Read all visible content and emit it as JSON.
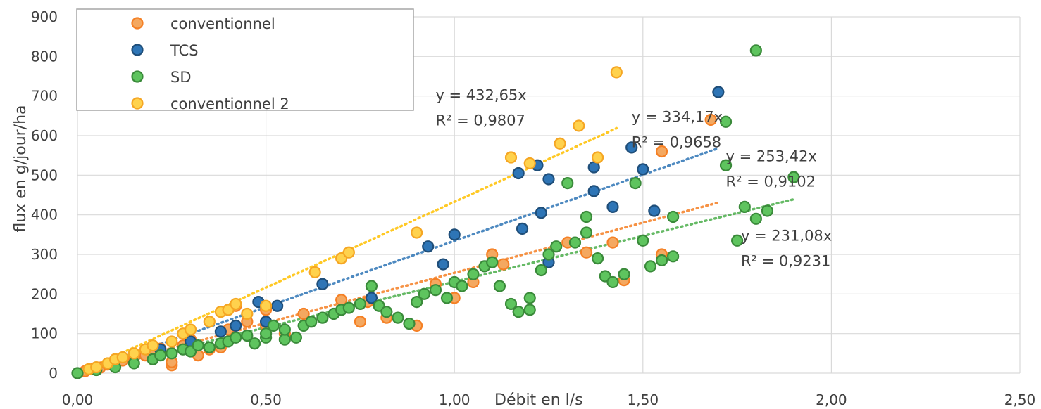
{
  "chart_data": {
    "type": "scatter",
    "xlabel": "Débit en l/s",
    "ylabel": "flux en g/jour/ha",
    "xlim": [
      0,
      2.5
    ],
    "ylim": [
      0,
      900
    ],
    "x_ticks": [
      "0,00",
      "0,50",
      "1,00",
      "1,50",
      "2,00",
      "2,50"
    ],
    "y_ticks": [
      "0",
      "100",
      "200",
      "300",
      "400",
      "500",
      "600",
      "700",
      "800",
      "900"
    ],
    "grid": true,
    "legend_position": "top-left",
    "series": [
      {
        "name": "conventionnel",
        "color": "#f58025",
        "fill": "#f4a860",
        "trend": {
          "slope": 253.42,
          "x_end": 1.7,
          "color": "#f58025"
        },
        "points": [
          [
            0.02,
            5
          ],
          [
            0.04,
            10
          ],
          [
            0.06,
            14
          ],
          [
            0.08,
            22
          ],
          [
            0.1,
            28
          ],
          [
            0.12,
            32
          ],
          [
            0.15,
            40
          ],
          [
            0.18,
            45
          ],
          [
            0.2,
            55
          ],
          [
            0.22,
            62
          ],
          [
            0.25,
            20
          ],
          [
            0.25,
            28
          ],
          [
            0.28,
            70
          ],
          [
            0.3,
            85
          ],
          [
            0.32,
            45
          ],
          [
            0.35,
            60
          ],
          [
            0.38,
            65
          ],
          [
            0.4,
            110
          ],
          [
            0.42,
            170
          ],
          [
            0.45,
            130
          ],
          [
            0.5,
            160
          ],
          [
            0.5,
            120
          ],
          [
            0.55,
            100
          ],
          [
            0.6,
            150
          ],
          [
            0.7,
            185
          ],
          [
            0.75,
            130
          ],
          [
            0.77,
            180
          ],
          [
            0.82,
            140
          ],
          [
            0.9,
            120
          ],
          [
            0.95,
            225
          ],
          [
            1.0,
            190
          ],
          [
            1.05,
            230
          ],
          [
            1.1,
            300
          ],
          [
            1.13,
            275
          ],
          [
            1.3,
            330
          ],
          [
            1.35,
            305
          ],
          [
            1.42,
            330
          ],
          [
            1.45,
            235
          ],
          [
            1.55,
            300
          ],
          [
            1.55,
            560
          ],
          [
            1.68,
            640
          ]
        ]
      },
      {
        "name": "TCS",
        "color": "#1f4e79",
        "fill": "#2e75b6",
        "trend": {
          "slope": 334.17,
          "x_end": 1.7,
          "color": "#2e75b6"
        },
        "points": [
          [
            0.22,
            60
          ],
          [
            0.3,
            80
          ],
          [
            0.38,
            105
          ],
          [
            0.42,
            120
          ],
          [
            0.48,
            180
          ],
          [
            0.5,
            130
          ],
          [
            0.53,
            170
          ],
          [
            0.65,
            225
          ],
          [
            0.78,
            190
          ],
          [
            0.93,
            320
          ],
          [
            0.97,
            275
          ],
          [
            1.0,
            350
          ],
          [
            1.17,
            505
          ],
          [
            1.18,
            365
          ],
          [
            1.22,
            525
          ],
          [
            1.23,
            405
          ],
          [
            1.25,
            280
          ],
          [
            1.25,
            490
          ],
          [
            1.37,
            520
          ],
          [
            1.37,
            460
          ],
          [
            1.42,
            420
          ],
          [
            1.47,
            570
          ],
          [
            1.5,
            515
          ],
          [
            1.53,
            410
          ],
          [
            1.7,
            710
          ]
        ]
      },
      {
        "name": "SD",
        "color": "#3a8a3a",
        "fill": "#5ec45e",
        "trend": {
          "slope": 231.08,
          "x_end": 1.9,
          "color": "#4cae4c"
        },
        "points": [
          [
            0,
            0
          ],
          [
            0.05,
            8
          ],
          [
            0.1,
            15
          ],
          [
            0.15,
            25
          ],
          [
            0.2,
            35
          ],
          [
            0.22,
            45
          ],
          [
            0.25,
            50
          ],
          [
            0.28,
            60
          ],
          [
            0.3,
            55
          ],
          [
            0.32,
            70
          ],
          [
            0.35,
            65
          ],
          [
            0.38,
            75
          ],
          [
            0.4,
            80
          ],
          [
            0.42,
            90
          ],
          [
            0.45,
            95
          ],
          [
            0.47,
            75
          ],
          [
            0.5,
            90
          ],
          [
            0.5,
            100
          ],
          [
            0.52,
            120
          ],
          [
            0.55,
            85
          ],
          [
            0.55,
            110
          ],
          [
            0.58,
            90
          ],
          [
            0.6,
            120
          ],
          [
            0.62,
            130
          ],
          [
            0.65,
            140
          ],
          [
            0.68,
            150
          ],
          [
            0.7,
            160
          ],
          [
            0.72,
            165
          ],
          [
            0.75,
            175
          ],
          [
            0.78,
            220
          ],
          [
            0.8,
            170
          ],
          [
            0.82,
            155
          ],
          [
            0.85,
            140
          ],
          [
            0.88,
            125
          ],
          [
            0.9,
            180
          ],
          [
            0.92,
            200
          ],
          [
            0.95,
            210
          ],
          [
            0.98,
            190
          ],
          [
            1.0,
            230
          ],
          [
            1.02,
            220
          ],
          [
            1.05,
            250
          ],
          [
            1.08,
            270
          ],
          [
            1.1,
            280
          ],
          [
            1.12,
            220
          ],
          [
            1.15,
            175
          ],
          [
            1.17,
            155
          ],
          [
            1.2,
            160
          ],
          [
            1.2,
            190
          ],
          [
            1.23,
            260
          ],
          [
            1.25,
            300
          ],
          [
            1.27,
            320
          ],
          [
            1.3,
            480
          ],
          [
            1.32,
            330
          ],
          [
            1.35,
            395
          ],
          [
            1.35,
            355
          ],
          [
            1.38,
            290
          ],
          [
            1.4,
            245
          ],
          [
            1.42,
            230
          ],
          [
            1.45,
            250
          ],
          [
            1.48,
            480
          ],
          [
            1.5,
            335
          ],
          [
            1.52,
            270
          ],
          [
            1.55,
            285
          ],
          [
            1.58,
            395
          ],
          [
            1.58,
            295
          ],
          [
            1.72,
            525
          ],
          [
            1.72,
            635
          ],
          [
            1.75,
            335
          ],
          [
            1.77,
            420
          ],
          [
            1.8,
            815
          ],
          [
            1.8,
            390
          ],
          [
            1.83,
            410
          ],
          [
            1.9,
            495
          ]
        ]
      },
      {
        "name": "conventionnel 2",
        "color": "#f5a623",
        "fill": "#ffd24d",
        "trend": {
          "slope": 432.65,
          "x_end": 1.43,
          "color": "#ffc000"
        },
        "points": [
          [
            0.03,
            10
          ],
          [
            0.05,
            15
          ],
          [
            0.08,
            25
          ],
          [
            0.1,
            35
          ],
          [
            0.12,
            40
          ],
          [
            0.15,
            50
          ],
          [
            0.18,
            60
          ],
          [
            0.2,
            70
          ],
          [
            0.25,
            80
          ],
          [
            0.28,
            100
          ],
          [
            0.3,
            110
          ],
          [
            0.35,
            130
          ],
          [
            0.38,
            155
          ],
          [
            0.4,
            160
          ],
          [
            0.42,
            175
          ],
          [
            0.45,
            150
          ],
          [
            0.5,
            170
          ],
          [
            0.63,
            255
          ],
          [
            0.7,
            290
          ],
          [
            0.72,
            305
          ],
          [
            0.9,
            355
          ],
          [
            1.15,
            545
          ],
          [
            1.2,
            530
          ],
          [
            1.28,
            580
          ],
          [
            1.33,
            625
          ],
          [
            1.38,
            545
          ],
          [
            1.43,
            760
          ]
        ]
      }
    ],
    "annotations": [
      {
        "line1": "y = 432,65x",
        "line2": "R² = 0,9807",
        "x": 0.95,
        "y": 690
      },
      {
        "line1": "y = 334,17x",
        "line2": "R² = 0,9658",
        "x": 1.47,
        "y": 635
      },
      {
        "line1": "y = 253,42x",
        "line2": "R² = 0,9102",
        "x": 1.72,
        "y": 535
      },
      {
        "line1": "y = 231,08x",
        "line2": "R² = 0,9231",
        "x": 1.76,
        "y": 335
      }
    ]
  }
}
